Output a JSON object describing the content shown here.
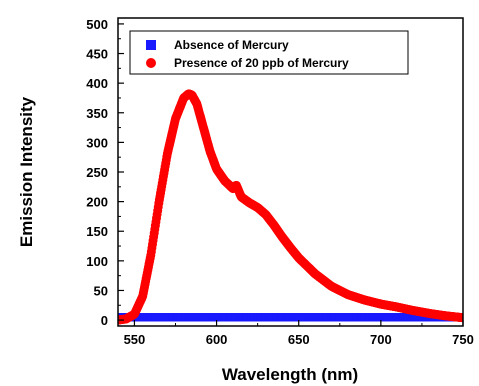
{
  "chart_data": {
    "type": "scatter",
    "title": "",
    "xlabel": "Wavelength (nm)",
    "ylabel": "Emission Intensity",
    "xlim": [
      540,
      750
    ],
    "ylim": [
      -10,
      510
    ],
    "x_ticks": [
      550,
      600,
      650,
      700,
      750
    ],
    "y_ticks": [
      0,
      50,
      100,
      150,
      200,
      250,
      300,
      350,
      400,
      450,
      500
    ],
    "grid": false,
    "legend_position": "top-left",
    "series": [
      {
        "name": "Absence of Mercury",
        "marker": "square",
        "color": "#1a1aff",
        "x": [
          540,
          560,
          580,
          600,
          620,
          640,
          660,
          680,
          700,
          720,
          740,
          750
        ],
        "y": [
          5,
          5,
          5,
          5,
          5,
          5,
          5,
          5,
          5,
          5,
          5,
          5
        ]
      },
      {
        "name": "Presence of 20 ppb of Mercury",
        "marker": "circle",
        "color": "#ff0000",
        "x": [
          540,
          545,
          550,
          555,
          560,
          565,
          570,
          575,
          580,
          583,
          585,
          588,
          592,
          596,
          600,
          605,
          610,
          612,
          615,
          620,
          625,
          630,
          635,
          640,
          645,
          650,
          660,
          670,
          680,
          690,
          700,
          710,
          720,
          730,
          740,
          750
        ],
        "y": [
          0,
          2,
          10,
          40,
          110,
          200,
          280,
          340,
          375,
          382,
          380,
          365,
          325,
          285,
          255,
          235,
          222,
          228,
          208,
          198,
          190,
          178,
          160,
          140,
          122,
          105,
          78,
          57,
          43,
          34,
          27,
          22,
          16,
          11,
          7,
          4
        ]
      }
    ]
  }
}
